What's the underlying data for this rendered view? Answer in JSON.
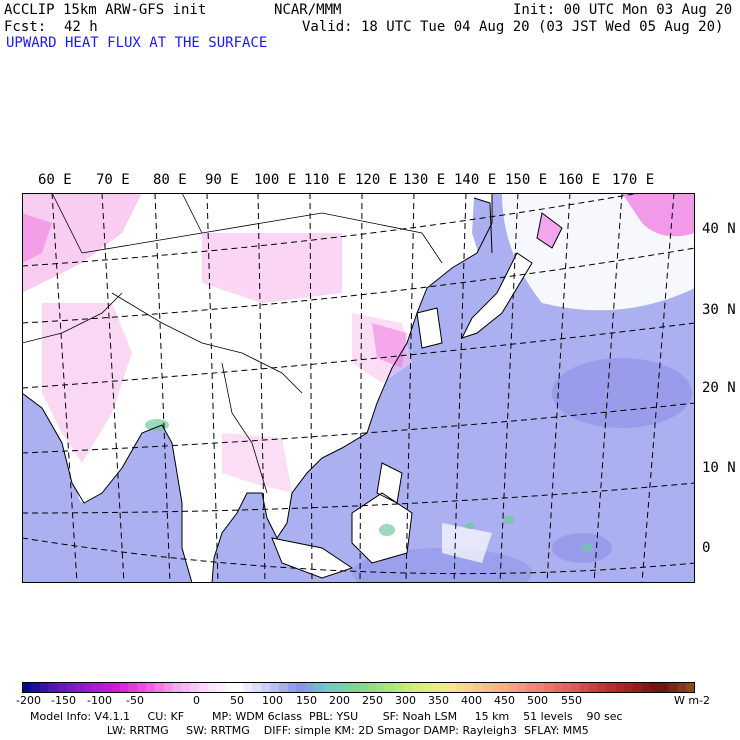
{
  "header": {
    "model": "ACCLIP 15km ARW-GFS init",
    "org": "NCAR/MMM",
    "init": "Init: 00 UTC Mon 03 Aug 20",
    "fcst_label": "Fcst:",
    "fcst_value": "42 h",
    "valid": "Valid: 18 UTC Tue 04 Aug 20 (03 JST Wed 05 Aug 20)",
    "field": "UPWARD HEAT FLUX AT THE SURFACE"
  },
  "map": {
    "lon_labels": [
      "60 E",
      "70 E",
      "80 E",
      "90 E",
      "100 E",
      "110 E",
      "120 E",
      "130 E",
      "140 E",
      "150 E",
      "160 E",
      "170 E"
    ],
    "lat_labels": [
      "40 N",
      "30 N",
      "20 N",
      "10 N",
      "0"
    ],
    "colors": {
      "land_low": "#ffffff",
      "land_pink": "#f8c8f0",
      "land_magenta": "#f070e0",
      "ocean": "#aab0f0",
      "ocean_dark": "#8c90e8",
      "green": "#70c8a0",
      "coast": "#000000",
      "grid": "#000000"
    }
  },
  "colorbar": {
    "ticks": [
      "-200",
      "-150",
      "-100",
      "-50",
      "0",
      "50",
      "100",
      "150",
      "200",
      "250",
      "300",
      "350",
      "400",
      "450",
      "500",
      "550"
    ],
    "unit": "W m-2",
    "stops": [
      "#0a0a8c",
      "#5a1ab4",
      "#9a1ad2",
      "#d01ad8",
      "#f058e6",
      "#f8a8f0",
      "#fce0fa",
      "#ffffff",
      "#c8ccf6",
      "#8a90ea",
      "#70c8c8",
      "#7ed890",
      "#a8e878",
      "#d8f078",
      "#f8e890",
      "#f8c88a",
      "#f8a880",
      "#f08070",
      "#e06060",
      "#c03838",
      "#a02020",
      "#6e1010",
      "#8a4a1a"
    ]
  },
  "footer": {
    "line1": "Model Info: V4.1.1     CU: KF        MP: WDM 6class  PBL: YSU       SF: Noah LSM     15 km    51 levels    90 sec",
    "line2": "                      LW: RRTMG     SW: RRTMG    DIFF: simple KM: 2D Smagor DAMP: Rayleigh3  SFLAY: MM5"
  }
}
